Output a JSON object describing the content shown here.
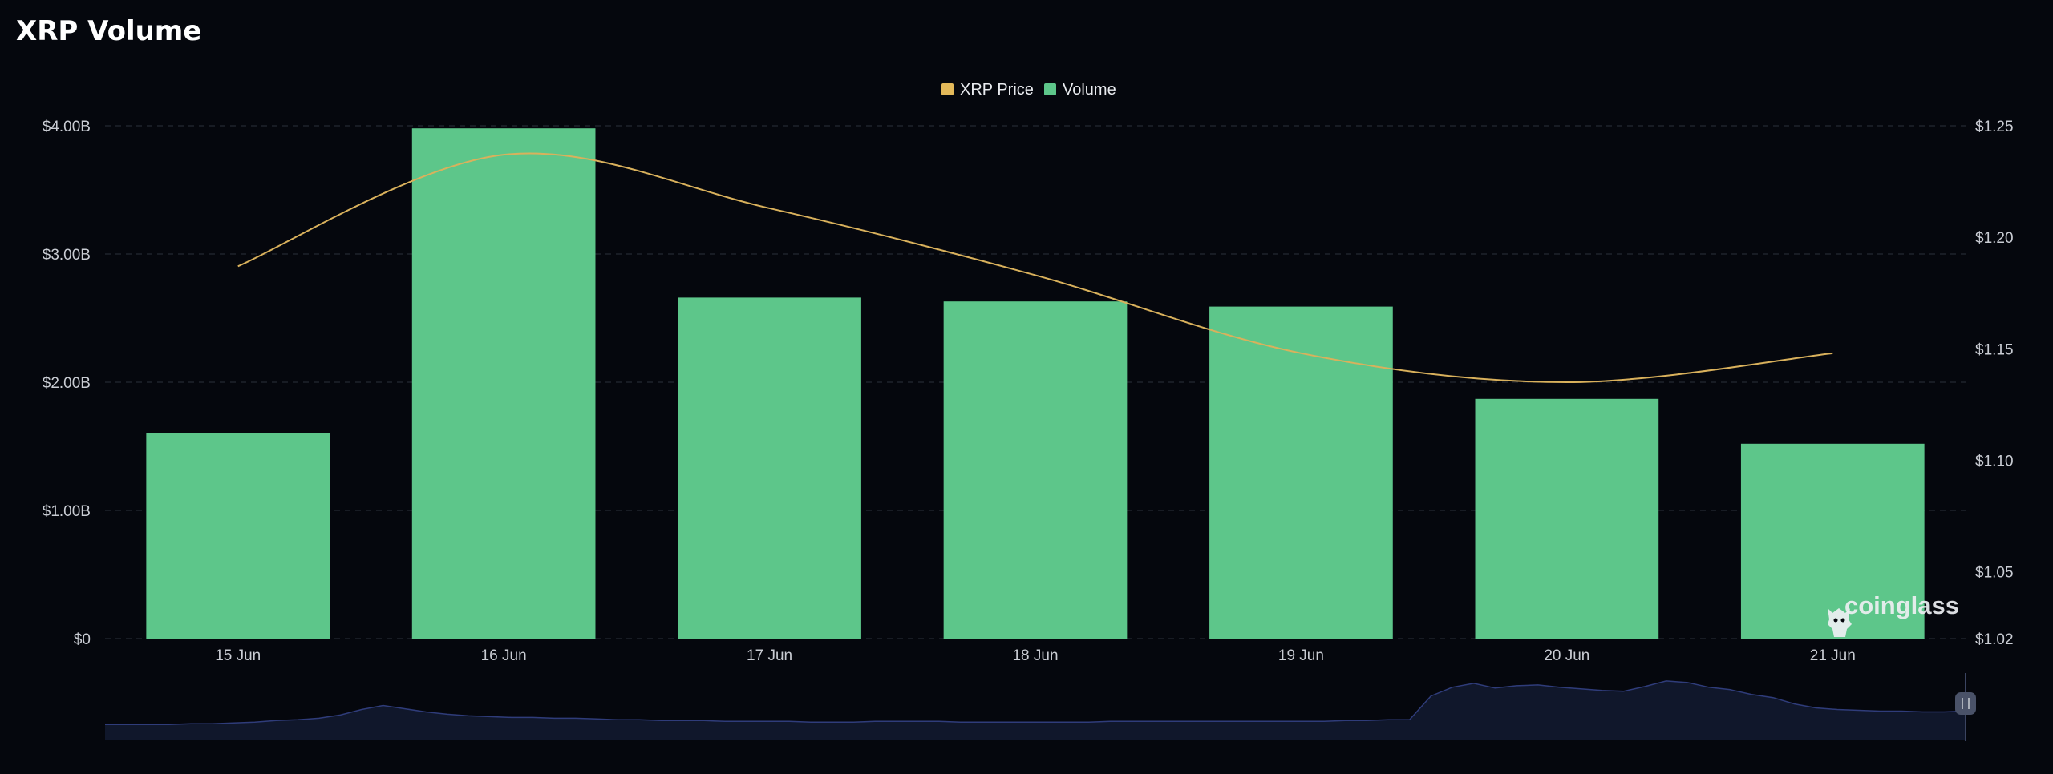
{
  "title": "XRP Volume",
  "legend": [
    {
      "label": "XRP Price",
      "color": "#e3b95a"
    },
    {
      "label": "Volume",
      "color": "#5dc68a"
    }
  ],
  "watermark": "coinglass",
  "colors": {
    "background": "#05070d",
    "bar": "#5dc68a",
    "line": "#d9b15c",
    "grid": "#242833",
    "navigator_line": "#2f3c7a",
    "navigator_fill": "#10172b"
  },
  "chart_data": {
    "type": "bar",
    "categories": [
      "15 Jun",
      "16 Jun",
      "17 Jun",
      "18 Jun",
      "19 Jun",
      "20 Jun",
      "21 Jun"
    ],
    "grid": true,
    "legend_position": "top-center",
    "series": [
      {
        "name": "Volume",
        "type": "bar",
        "axis": "left",
        "values": [
          1.6,
          3.98,
          2.66,
          2.63,
          2.59,
          1.87,
          1.52
        ]
      },
      {
        "name": "XRP Price",
        "type": "line",
        "axis": "right",
        "values": [
          1.187,
          1.237,
          1.213,
          1.183,
          1.148,
          1.135,
          1.148
        ]
      }
    ],
    "y_left": {
      "ticks": [
        "$0",
        "$1.00B",
        "$2.00B",
        "$3.00B",
        "$4.00B"
      ],
      "tick_values": [
        0,
        1,
        2,
        3,
        4
      ],
      "unit": "B USD",
      "ylim": [
        0,
        4
      ]
    },
    "y_right": {
      "ticks": [
        "$1.02",
        "$1.05",
        "$1.10",
        "$1.15",
        "$1.20",
        "$1.25"
      ],
      "tick_values": [
        1.02,
        1.05,
        1.1,
        1.15,
        1.2,
        1.25
      ],
      "ylim": [
        1.02,
        1.25
      ]
    },
    "navigator": {
      "values": [
        2,
        2,
        2,
        2,
        2.1,
        2.1,
        2.2,
        2.3,
        2.5,
        2.6,
        2.8,
        3.2,
        3.9,
        4.4,
        4.0,
        3.6,
        3.3,
        3.1,
        3.0,
        2.9,
        2.9,
        2.8,
        2.8,
        2.7,
        2.6,
        2.6,
        2.5,
        2.5,
        2.5,
        2.4,
        2.4,
        2.4,
        2.4,
        2.3,
        2.3,
        2.3,
        2.4,
        2.4,
        2.4,
        2.4,
        2.3,
        2.3,
        2.3,
        2.3,
        2.3,
        2.3,
        2.3,
        2.4,
        2.4,
        2.4,
        2.4,
        2.4,
        2.4,
        2.4,
        2.4,
        2.4,
        2.4,
        2.4,
        2.5,
        2.5,
        2.6,
        2.6,
        5.6,
        6.7,
        7.2,
        6.6,
        6.9,
        7.0,
        6.7,
        6.5,
        6.3,
        6.2,
        6.8,
        7.5,
        7.3,
        6.7,
        6.4,
        5.8,
        5.4,
        4.6,
        4.1,
        3.9,
        3.8,
        3.7,
        3.7,
        3.6,
        3.6,
        3.7
      ],
      "ylim": [
        0,
        8
      ]
    }
  }
}
